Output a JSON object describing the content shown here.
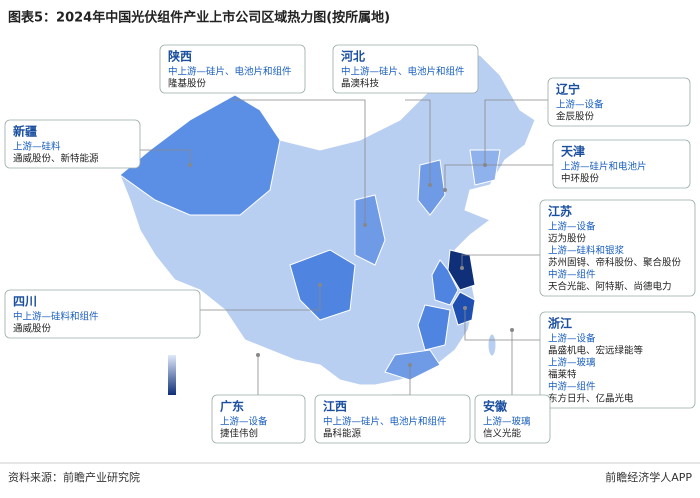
{
  "title": "图表5：2024年中国光伏组件产业上市公司区域热力图(按所属地)",
  "callouts": [
    {
      "province": "陕西",
      "lines": [
        "中上游—硅片、电池片和组件",
        "隆基股份"
      ]
    },
    {
      "province": "河北",
      "lines": [
        "中上游—硅片、电池片和组件",
        "晶澳科技"
      ]
    },
    {
      "province": "辽宁",
      "lines": [
        "上游—设备",
        "金辰股份"
      ]
    },
    {
      "province": "新疆",
      "lines": [
        "上游—硅料",
        "通威股份、新特能源"
      ]
    },
    {
      "province": "天津",
      "lines": [
        "上游—硅片和电池片",
        "中环股份"
      ]
    },
    {
      "province": "江苏",
      "lines": [
        "上游—设备",
        "迈为股份",
        "上游—硅料和银浆",
        "苏州固锝、帝科股份、聚合股份",
        "中游—组件",
        "天合光能、阿特斯、尚德电力"
      ]
    },
    {
      "province": "四川",
      "lines": [
        "中上游—硅料和组件",
        "通威股份"
      ]
    },
    {
      "province": "浙江",
      "lines": [
        "上游—设备",
        "晶盛机电、宏远绿能等",
        "上游—玻璃",
        "福莱特",
        "中游—组件",
        "东方日升、亿晶光电"
      ]
    },
    {
      "province": "广东",
      "lines": [
        "上游—设备",
        "捷佳伟创"
      ]
    },
    {
      "province": "江西",
      "lines": [
        "中上游—硅片、电池片和组件",
        "晶科能源"
      ]
    },
    {
      "province": "安徽",
      "lines": [
        "上游—玻璃",
        "信义光能"
      ]
    }
  ],
  "source": "资料来源：前瞻产业研究院",
  "brand": "前瞻经济学人APP"
}
